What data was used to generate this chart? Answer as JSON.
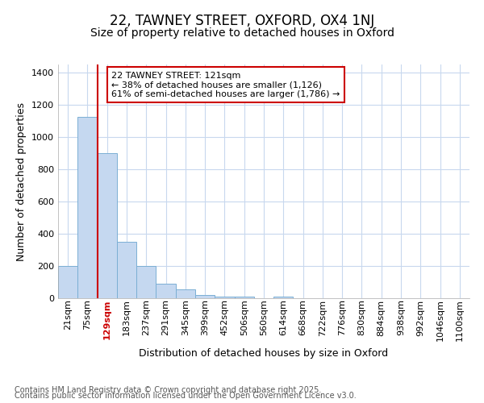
{
  "title1": "22, TAWNEY STREET, OXFORD, OX4 1NJ",
  "title2": "Size of property relative to detached houses in Oxford",
  "xlabel": "Distribution of detached houses by size in Oxford",
  "ylabel": "Number of detached properties",
  "categories": [
    "21sqm",
    "75sqm",
    "129sqm",
    "183sqm",
    "237sqm",
    "291sqm",
    "345sqm",
    "399sqm",
    "452sqm",
    "506sqm",
    "560sqm",
    "614sqm",
    "668sqm",
    "722sqm",
    "776sqm",
    "830sqm",
    "884sqm",
    "938sqm",
    "992sqm",
    "1046sqm",
    "1100sqm"
  ],
  "values": [
    200,
    1125,
    900,
    350,
    200,
    90,
    55,
    20,
    10,
    10,
    0,
    10,
    0,
    0,
    0,
    0,
    0,
    0,
    0,
    0,
    0
  ],
  "bar_color": "#c5d8f0",
  "bar_edge_color": "#7bafd4",
  "bar_width": 1.0,
  "vline_color": "#cc0000",
  "vline_x_index": 2,
  "annotation_text": "22 TAWNEY STREET: 121sqm\n← 38% of detached houses are smaller (1,126)\n61% of semi-detached houses are larger (1,786) →",
  "annotation_box_color": "#ffffff",
  "annotation_box_edge": "#cc0000",
  "ylim": [
    0,
    1450
  ],
  "yticks": [
    0,
    200,
    400,
    600,
    800,
    1000,
    1200,
    1400
  ],
  "background_color": "#ffffff",
  "plot_bg_color": "#ffffff",
  "grid_color": "#c8d8ee",
  "footer1": "Contains HM Land Registry data © Crown copyright and database right 2025.",
  "footer2": "Contains public sector information licensed under the Open Government Licence v3.0.",
  "title1_fontsize": 12,
  "title2_fontsize": 10,
  "axis_label_fontsize": 9,
  "tick_fontsize": 8,
  "annotation_fontsize": 8,
  "footer_fontsize": 7
}
